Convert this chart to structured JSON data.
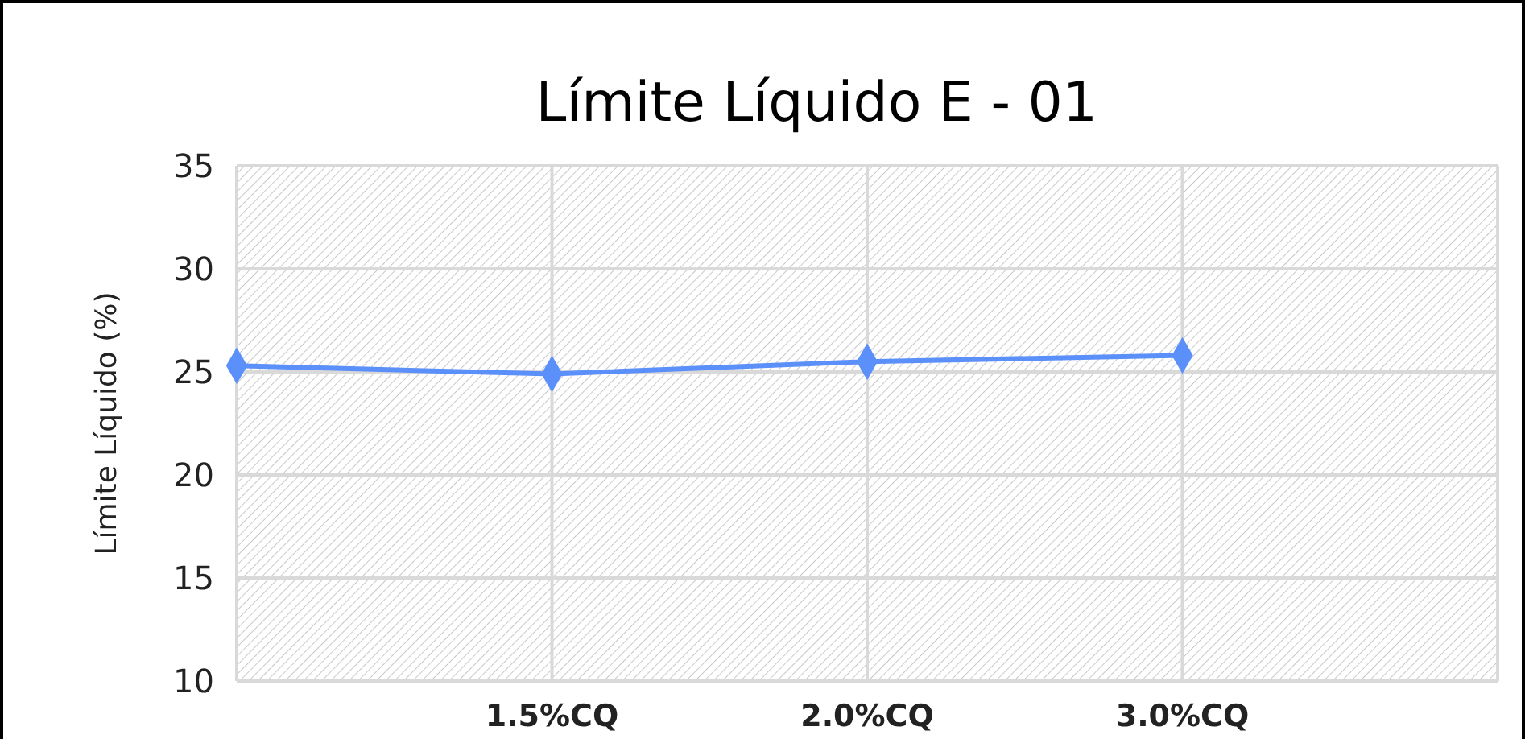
{
  "chart_data": {
    "type": "line",
    "title": "Límite Líquido E - 01",
    "ylabel": "Límite Líquido (%)",
    "categories": [
      null,
      "1.5%CQ",
      "2.0%CQ",
      "3.0%CQ",
      null
    ],
    "series": [
      {
        "color": "#5b8ff9",
        "values": [
          25.3,
          24.9,
          25.5,
          25.8,
          null
        ]
      }
    ],
    "ylim": [
      10,
      35
    ],
    "yticks": [
      10,
      15,
      20,
      25,
      30,
      35
    ],
    "grid": true,
    "marker": "diamond",
    "line_style": "solid"
  }
}
